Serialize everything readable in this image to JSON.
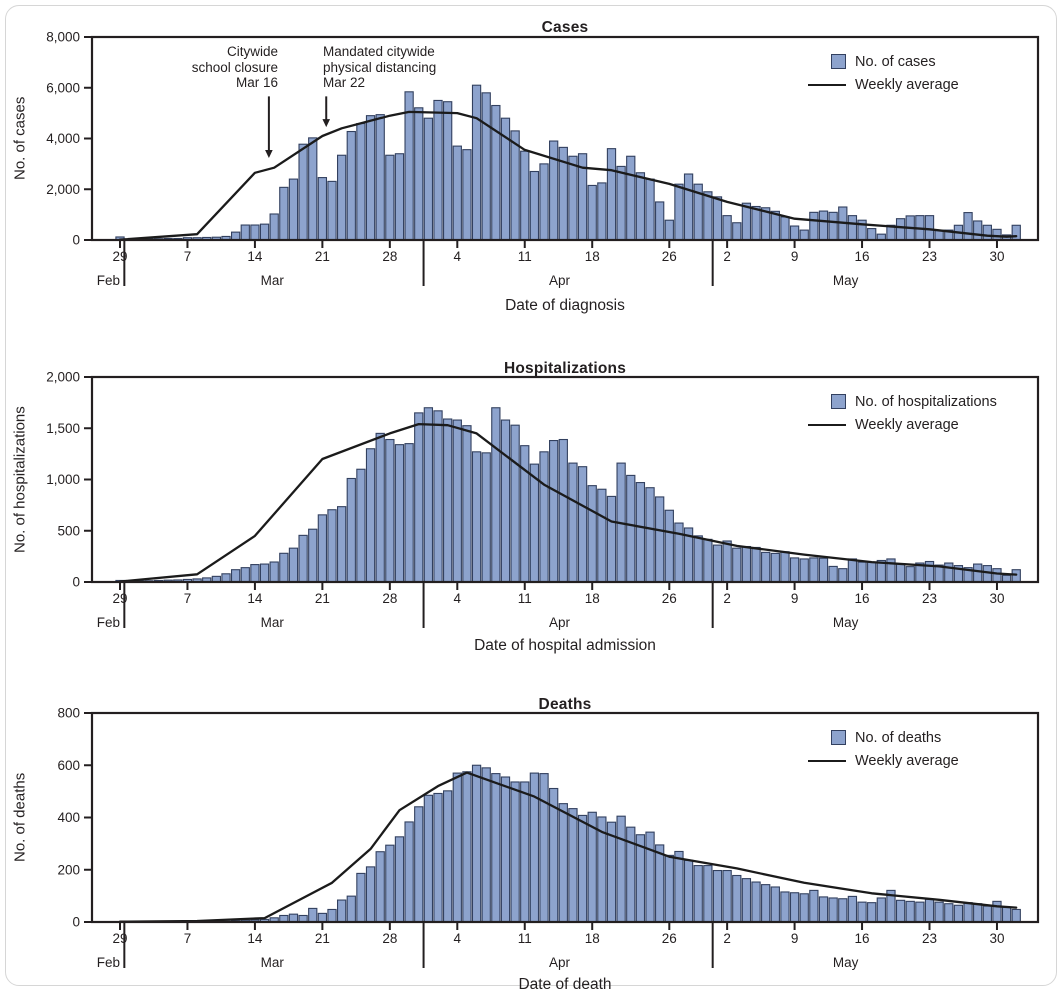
{
  "x_axis": {
    "tick_days": [
      0,
      7,
      14,
      21,
      28,
      35,
      42,
      49,
      57,
      63,
      70,
      77,
      84,
      91
    ],
    "tick_labels": [
      "29",
      "7",
      "14",
      "21",
      "28",
      "4",
      "11",
      "18",
      "26",
      "2",
      "9",
      "16",
      "23",
      "30"
    ],
    "months": [
      {
        "label": "Feb",
        "day": -1.2
      },
      {
        "label": "Mar",
        "day": 15.8
      },
      {
        "label": "Apr",
        "day": 45.6
      },
      {
        "label": "May",
        "day": 75.3
      }
    ],
    "start_date": "Feb 29",
    "end_date": "Jun 1"
  },
  "colors": {
    "bar_fill": "#8da3cd",
    "bar_stroke": "#32405f",
    "line": "#1b1b1b",
    "axis": "#231f20",
    "text": "#231f20",
    "card_border": "#d6d6d6"
  },
  "chart_data": [
    {
      "type": "bar",
      "title": "Cases",
      "ylabel": "No. of cases",
      "xlabel": "Date of diagnosis",
      "legend": [
        "No. of cases",
        "Weekly average"
      ],
      "ylim": [
        0,
        8000
      ],
      "yticks": [
        0,
        2000,
        4000,
        6000,
        8000
      ],
      "ytick_labels": [
        "0",
        "2,000",
        "4,000",
        "6,000",
        "8,000"
      ],
      "values": [
        120,
        30,
        30,
        40,
        50,
        60,
        60,
        90,
        90,
        100,
        110,
        140,
        310,
        590,
        590,
        625,
        1025,
        2075,
        2400,
        3775,
        4025,
        2460,
        2310,
        3340,
        4275,
        4590,
        4900,
        4940,
        3340,
        3400,
        5840,
        5210,
        4800,
        5500,
        5450,
        3700,
        3560,
        6100,
        5800,
        5300,
        4800,
        4300,
        3500,
        2700,
        3000,
        3900,
        3650,
        3300,
        3400,
        2150,
        2250,
        3600,
        2900,
        3300,
        2650,
        2400,
        1500,
        780,
        2200,
        2600,
        2200,
        1900,
        1700,
        960,
        680,
        1450,
        1320,
        1270,
        1130,
        910,
        550,
        390,
        1090,
        1140,
        1090,
        1300,
        960,
        780,
        450,
        230,
        580,
        840,
        950,
        960,
        960,
        390,
        390,
        580,
        1080,
        750,
        580,
        420,
        200,
        580
      ],
      "weekly_average": [
        [
          0,
          10
        ],
        [
          8,
          230
        ],
        [
          14,
          2650
        ],
        [
          16,
          2850
        ],
        [
          21,
          4100
        ],
        [
          23,
          4400
        ],
        [
          28,
          4900
        ],
        [
          30,
          5050
        ],
        [
          35,
          5000
        ],
        [
          37,
          4800
        ],
        [
          42,
          3550
        ],
        [
          48,
          2850
        ],
        [
          51,
          2750
        ],
        [
          57,
          2210
        ],
        [
          63,
          1500
        ],
        [
          70,
          840
        ],
        [
          77,
          620
        ],
        [
          84,
          420
        ],
        [
          90,
          170
        ],
        [
          92,
          130
        ],
        [
          93,
          150
        ]
      ],
      "annotations": [
        {
          "lines": [
            "Citywide",
            "school closure",
            "Mar 16"
          ],
          "align": "right",
          "arrow": {
            "day": 15.45,
            "from_value": 5660,
            "to_value": 3230
          }
        },
        {
          "lines": [
            "Mandated citywide",
            "physical distancing",
            "Mar 22"
          ],
          "align": "left",
          "arrow": {
            "day": 21.4,
            "from_value": 5660,
            "to_value": 4450
          }
        }
      ]
    },
    {
      "type": "bar",
      "title": "Hospitalizations",
      "ylabel": "No. of hospitalizations",
      "xlabel": "Date of hospital admission",
      "legend": [
        "No. of hospitalizations",
        "Weekly average"
      ],
      "ylim": [
        0,
        2000
      ],
      "yticks": [
        0,
        500,
        1000,
        1500,
        2000
      ],
      "ytick_labels": [
        "0",
        "500",
        "1,000",
        "1,500",
        "2,000"
      ],
      "values": [
        15,
        8,
        10,
        12,
        15,
        18,
        20,
        25,
        30,
        40,
        55,
        80,
        120,
        140,
        170,
        175,
        195,
        280,
        330,
        455,
        515,
        655,
        705,
        735,
        1010,
        1100,
        1300,
        1450,
        1390,
        1340,
        1350,
        1650,
        1700,
        1670,
        1590,
        1580,
        1525,
        1270,
        1260,
        1700,
        1580,
        1530,
        1330,
        1150,
        1270,
        1380,
        1390,
        1160,
        1125,
        940,
        905,
        835,
        1160,
        1040,
        970,
        920,
        830,
        700,
        575,
        527,
        450,
        416,
        360,
        400,
        330,
        346,
        337,
        289,
        279,
        295,
        235,
        225,
        235,
        232,
        152,
        130,
        225,
        194,
        194,
        210,
        225,
        180,
        150,
        185,
        200,
        165,
        185,
        160,
        140,
        175,
        160,
        130,
        65,
        120
      ],
      "weekly_average": [
        [
          0,
          5
        ],
        [
          8,
          75
        ],
        [
          14,
          450
        ],
        [
          21,
          1200
        ],
        [
          28,
          1450
        ],
        [
          31,
          1540
        ],
        [
          34,
          1530
        ],
        [
          37,
          1450
        ],
        [
          44,
          950
        ],
        [
          51,
          590
        ],
        [
          58,
          470
        ],
        [
          64,
          352
        ],
        [
          71,
          267
        ],
        [
          78,
          194
        ],
        [
          85,
          152
        ],
        [
          91,
          83
        ],
        [
          93,
          72
        ]
      ],
      "annotations": []
    },
    {
      "type": "bar",
      "title": "Deaths",
      "ylabel": "No. of deaths",
      "xlabel": "Date of death",
      "legend": [
        "No. of deaths",
        "Weekly average"
      ],
      "ylim": [
        0,
        800
      ],
      "yticks": [
        0,
        200,
        400,
        600,
        800
      ],
      "ytick_labels": [
        "0",
        "200",
        "400",
        "600",
        "800"
      ],
      "values": [
        0,
        0,
        0,
        0,
        0,
        0,
        0,
        0,
        1,
        1,
        2,
        3,
        5,
        7,
        8,
        10,
        16,
        25,
        30,
        25,
        52,
        33,
        48,
        84,
        99,
        186,
        211,
        269,
        294,
        326,
        383,
        441,
        485,
        492,
        502,
        570,
        575,
        600,
        590,
        568,
        555,
        536,
        536,
        570,
        568,
        511,
        453,
        434,
        408,
        420,
        402,
        382,
        405,
        363,
        334,
        344,
        295,
        255,
        270,
        236,
        216,
        216,
        197,
        197,
        178,
        166,
        153,
        143,
        134,
        115,
        112,
        108,
        121,
        96,
        92,
        89,
        98,
        76,
        74,
        92,
        121,
        83,
        79,
        76,
        87,
        76,
        70,
        64,
        74,
        70,
        61,
        79,
        57,
        48
      ],
      "weekly_average": [
        [
          0,
          1
        ],
        [
          8,
          4
        ],
        [
          15,
          15
        ],
        [
          22,
          150
        ],
        [
          26,
          280
        ],
        [
          29,
          428
        ],
        [
          33,
          520
        ],
        [
          36,
          572
        ],
        [
          43,
          480
        ],
        [
          50,
          345
        ],
        [
          57,
          250
        ],
        [
          64,
          205
        ],
        [
          71,
          150
        ],
        [
          78,
          110
        ],
        [
          85,
          85
        ],
        [
          91,
          60
        ],
        [
          93,
          55
        ]
      ],
      "annotations": []
    }
  ]
}
